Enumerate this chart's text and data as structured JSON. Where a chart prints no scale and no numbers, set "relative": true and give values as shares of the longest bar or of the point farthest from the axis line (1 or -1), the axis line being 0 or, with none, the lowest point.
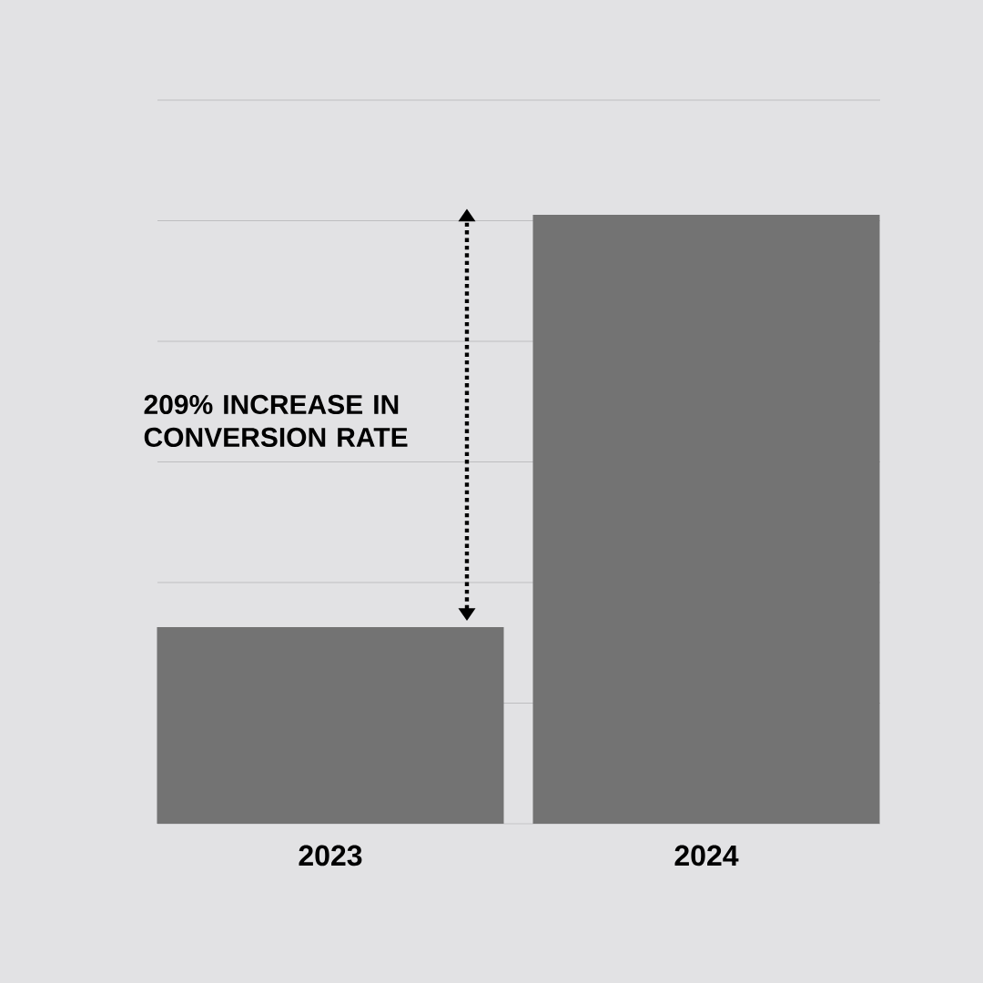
{
  "chart_data": {
    "type": "bar",
    "categories": [
      "2023",
      "2024"
    ],
    "values": [
      0.323,
      1
    ],
    "color": "#737373",
    "relative": true,
    "grid": "y",
    "annotations": [
      "209% INCREASE IN CONVERSION RATE"
    ]
  }
}
